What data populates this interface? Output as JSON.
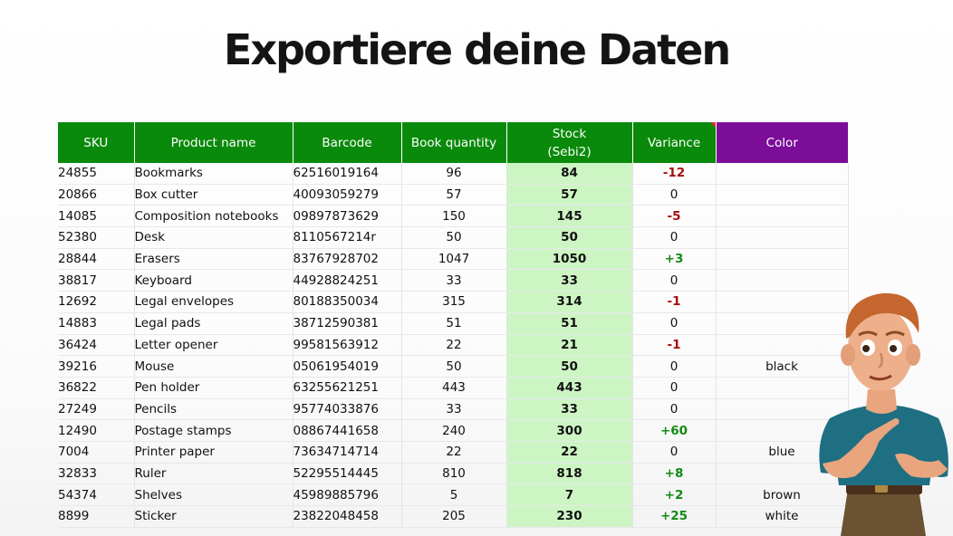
{
  "title": "Exportiere deine Daten",
  "table": {
    "headers": {
      "sku": "SKU",
      "product_name": "Product name",
      "barcode": "Barcode",
      "book_quantity": "Book quantity",
      "stock_line1": "Stock",
      "stock_line2": "(Sebi2)",
      "variance": "Variance",
      "color": "Color"
    },
    "rows": [
      {
        "sku": "24855",
        "name": "Bookmarks",
        "barcode": "62516019164",
        "qty": "96",
        "stock": "84",
        "variance": "-12",
        "color": ""
      },
      {
        "sku": "20866",
        "name": "Box cutter",
        "barcode": "40093059279",
        "qty": "57",
        "stock": "57",
        "variance": "0",
        "color": ""
      },
      {
        "sku": "14085",
        "name": "Composition notebooks",
        "barcode": "09897873629",
        "qty": "150",
        "stock": "145",
        "variance": "-5",
        "color": ""
      },
      {
        "sku": "52380",
        "name": "Desk",
        "barcode": "8110567214r",
        "qty": "50",
        "stock": "50",
        "variance": "0",
        "color": ""
      },
      {
        "sku": "28844",
        "name": "Erasers",
        "barcode": "83767928702",
        "qty": "1047",
        "stock": "1050",
        "variance": "+3",
        "color": ""
      },
      {
        "sku": "38817",
        "name": "Keyboard",
        "barcode": "44928824251",
        "qty": "33",
        "stock": "33",
        "variance": "0",
        "color": ""
      },
      {
        "sku": "12692",
        "name": "Legal envelopes",
        "barcode": "80188350034",
        "qty": "315",
        "stock": "314",
        "variance": "-1",
        "color": ""
      },
      {
        "sku": "14883",
        "name": "Legal pads",
        "barcode": "38712590381",
        "qty": "51",
        "stock": "51",
        "variance": "0",
        "color": ""
      },
      {
        "sku": "36424",
        "name": "Letter opener",
        "barcode": "99581563912",
        "qty": "22",
        "stock": "21",
        "variance": "-1",
        "color": ""
      },
      {
        "sku": "39216",
        "name": "Mouse",
        "barcode": "05061954019",
        "qty": "50",
        "stock": "50",
        "variance": "0",
        "color": "black"
      },
      {
        "sku": "36822",
        "name": "Pen holder",
        "barcode": "63255621251",
        "qty": "443",
        "stock": "443",
        "variance": "0",
        "color": ""
      },
      {
        "sku": "27249",
        "name": "Pencils",
        "barcode": "95774033876",
        "qty": "33",
        "stock": "33",
        "variance": "0",
        "color": ""
      },
      {
        "sku": "12490",
        "name": "Postage stamps",
        "barcode": "08867441658",
        "qty": "240",
        "stock": "300",
        "variance": "+60",
        "color": ""
      },
      {
        "sku": "7004",
        "name": "Printer paper",
        "barcode": "73634714714",
        "qty": "22",
        "stock": "22",
        "variance": "0",
        "color": "blue"
      },
      {
        "sku": "32833",
        "name": "Ruler",
        "barcode": "52295514445",
        "qty": "810",
        "stock": "818",
        "variance": "+8",
        "color": ""
      },
      {
        "sku": "54374",
        "name": "Shelves",
        "barcode": "45989885796",
        "qty": "5",
        "stock": "7",
        "variance": "+2",
        "color": "brown"
      },
      {
        "sku": "8899",
        "name": "Sticker",
        "barcode": "23822048458",
        "qty": "205",
        "stock": "230",
        "variance": "+25",
        "color": "white"
      }
    ]
  },
  "colors": {
    "header_green": "#0a8a0a",
    "header_purple": "#7b0d99",
    "stock_fill": "#cdf5c4",
    "negative": "#a50d0d",
    "positive": "#138a13"
  },
  "avatar_icon": "cartoon-presenter-avatar"
}
